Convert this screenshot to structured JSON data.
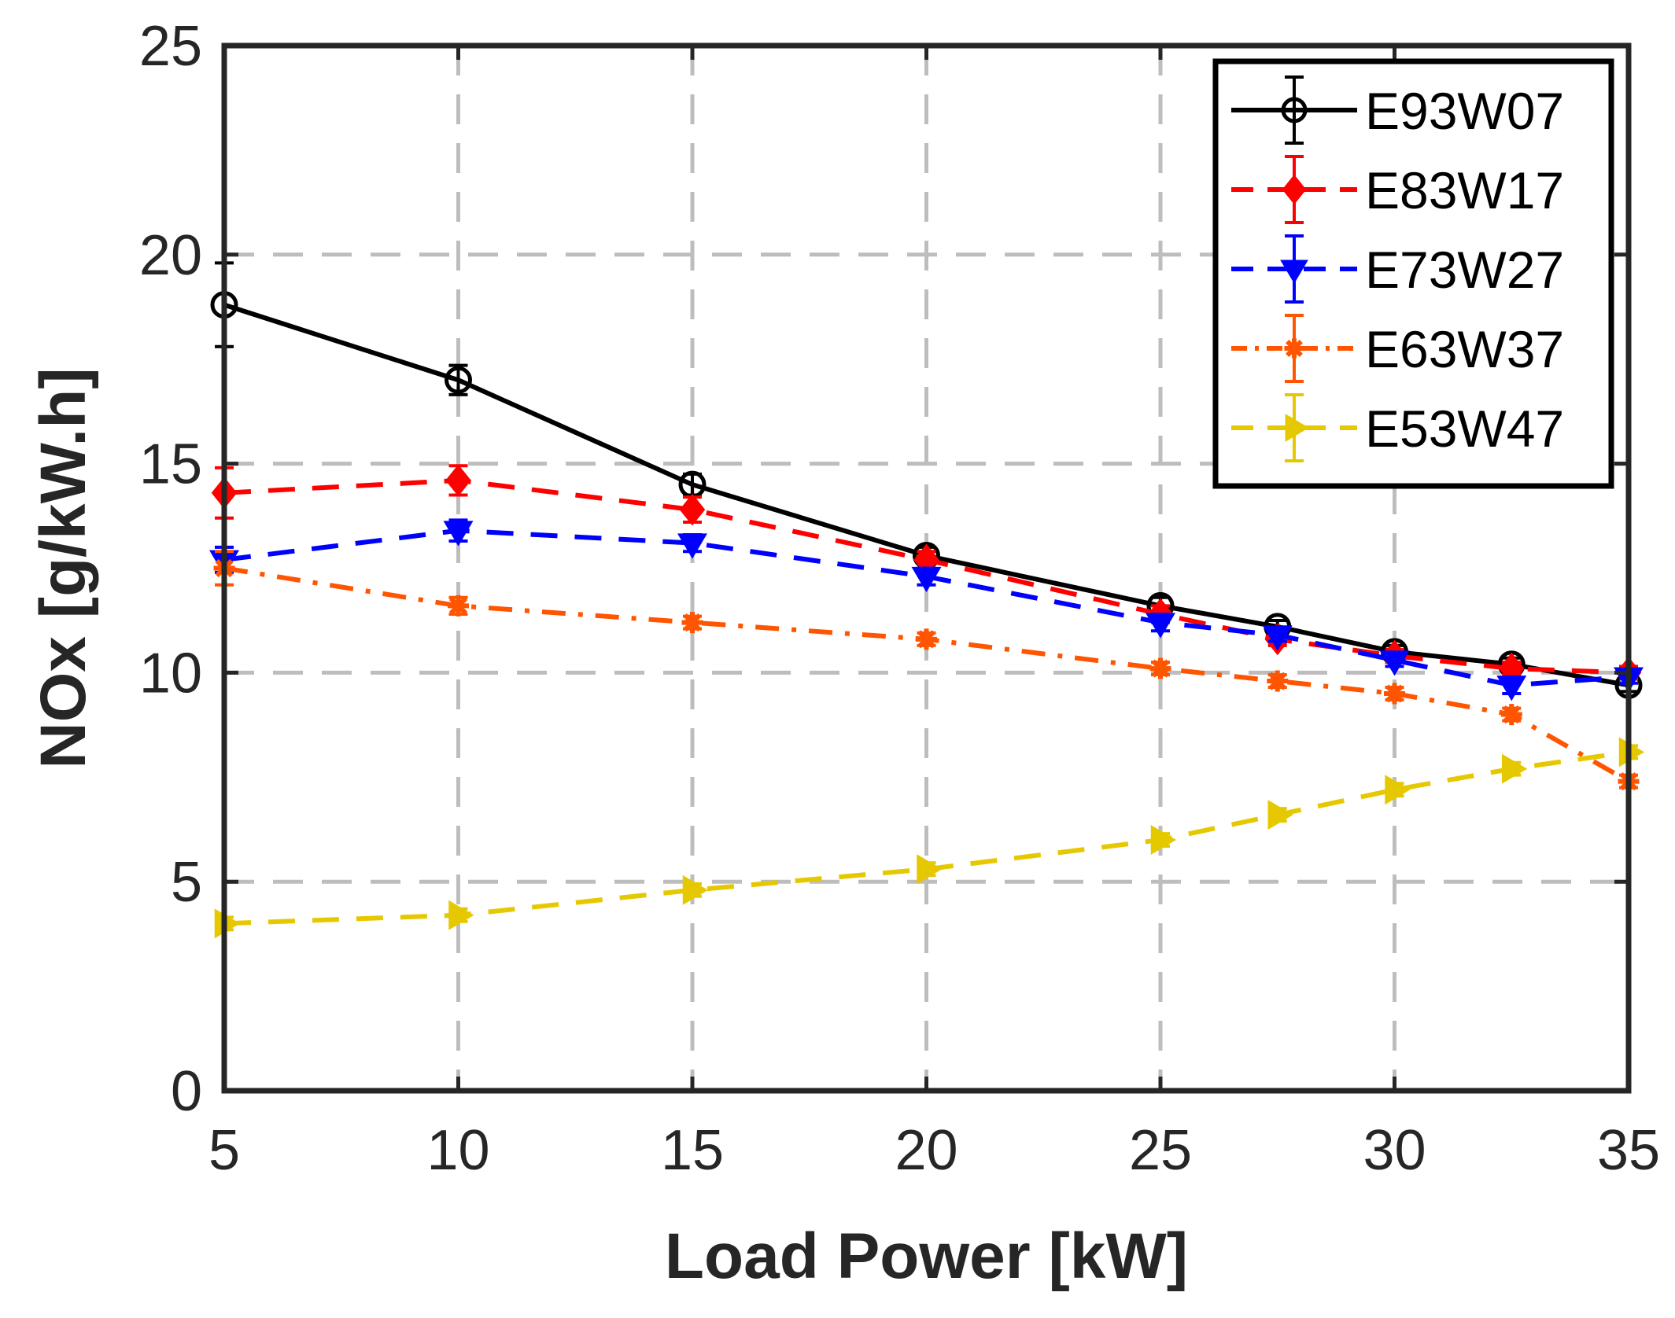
{
  "chart_data": {
    "type": "line",
    "title": "",
    "xlabel": "Load Power [kW]",
    "ylabel": "NOx [g/kW.h]",
    "xlim": [
      5,
      35
    ],
    "ylim": [
      0,
      25
    ],
    "xticks": [
      5,
      10,
      15,
      20,
      25,
      30,
      35
    ],
    "yticks": [
      0,
      5,
      10,
      15,
      20,
      25
    ],
    "xtick_labels": [
      "5",
      "10",
      "15",
      "20",
      "25",
      "30",
      "35"
    ],
    "ytick_labels": [
      "0",
      "5",
      "10",
      "15",
      "20",
      "25"
    ],
    "grid": true,
    "legend_position": "top-right",
    "x": [
      5,
      10,
      15,
      20,
      25,
      27.5,
      30,
      32.5,
      35
    ],
    "series": [
      {
        "name": "E93W07",
        "color": "#000000",
        "dash": "solid",
        "marker": "circle",
        "values": [
          18.8,
          17.0,
          14.5,
          12.8,
          11.6,
          11.1,
          10.5,
          10.2,
          9.7
        ],
        "errors": [
          1.0,
          0.35,
          0.25,
          0.2,
          0.2,
          0.15,
          0.15,
          0.15,
          0.15
        ]
      },
      {
        "name": "E83W17",
        "color": "#ff0000",
        "dash": "dashed",
        "marker": "diamond",
        "values": [
          14.3,
          14.6,
          13.9,
          12.7,
          11.4,
          10.8,
          10.4,
          10.1,
          10.0
        ],
        "errors": [
          0.6,
          0.35,
          0.3,
          0.2,
          0.2,
          0.15,
          0.15,
          0.15,
          0.15
        ]
      },
      {
        "name": "E73W27",
        "color": "#0000ff",
        "dash": "dashed",
        "marker": "triangle-down",
        "values": [
          12.7,
          13.4,
          13.1,
          12.3,
          11.2,
          10.9,
          10.3,
          9.7,
          9.9
        ],
        "errors": [
          0.3,
          0.25,
          0.2,
          0.2,
          0.2,
          0.15,
          0.15,
          0.2,
          0.15
        ]
      },
      {
        "name": "E63W37",
        "color": "#ff5500",
        "dash": "dashdot",
        "marker": "asterisk",
        "values": [
          12.5,
          11.6,
          11.2,
          10.8,
          10.1,
          9.8,
          9.5,
          9.0,
          7.4
        ],
        "errors": [
          0.4,
          0.2,
          0.15,
          0.15,
          0.15,
          0.15,
          0.15,
          0.15,
          0.15
        ]
      },
      {
        "name": "E53W47",
        "color": "#e6c800",
        "dash": "dashed",
        "marker": "triangle-right",
        "values": [
          4.0,
          4.2,
          4.8,
          5.3,
          6.0,
          6.6,
          7.2,
          7.7,
          8.1
        ],
        "errors": [
          0.15,
          0.15,
          0.15,
          0.15,
          0.15,
          0.15,
          0.15,
          0.15,
          0.15
        ]
      }
    ]
  }
}
